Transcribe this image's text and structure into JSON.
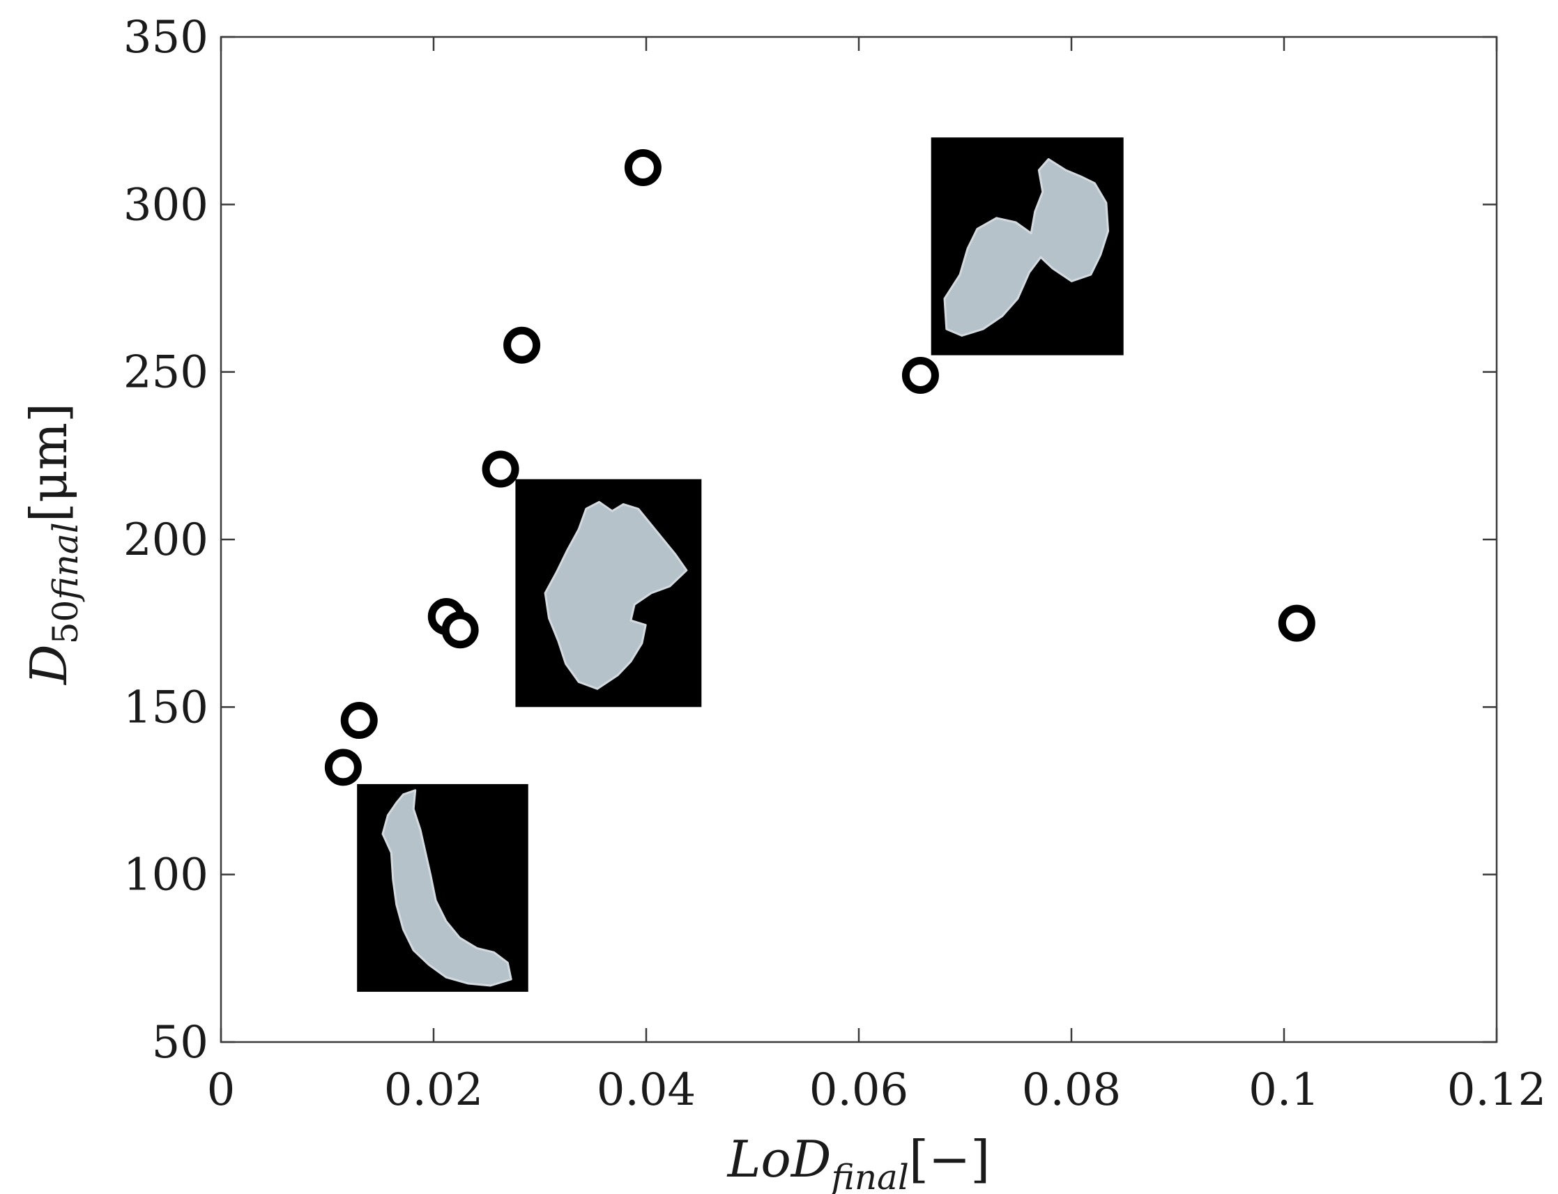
{
  "chart_data": {
    "type": "scatter",
    "xlabel": {
      "main": "LoD",
      "sub": "final",
      "bracket": "[−]"
    },
    "ylabel": {
      "main": "D",
      "sub": "50",
      "sub_italic": "final",
      "bracket": "[μm]"
    },
    "xlim": [
      0,
      0.12
    ],
    "ylim": [
      50,
      350
    ],
    "xticks": [
      0,
      0.02,
      0.04,
      0.06,
      0.08,
      0.1,
      0.12
    ],
    "xtick_labels": [
      "0",
      "0.02",
      "0.04",
      "0.06",
      "0.08",
      "0.1",
      "0.12"
    ],
    "yticks": [
      50,
      100,
      150,
      200,
      250,
      300,
      350
    ],
    "ytick_labels": [
      "50",
      "100",
      "150",
      "200",
      "250",
      "300",
      "350"
    ],
    "grid": false,
    "marker": "open-circle",
    "marker_color": "#000000",
    "points": [
      {
        "x": 0.0115,
        "y": 132
      },
      {
        "x": 0.013,
        "y": 146
      },
      {
        "x": 0.0212,
        "y": 177
      },
      {
        "x": 0.0225,
        "y": 173
      },
      {
        "x": 0.0263,
        "y": 221
      },
      {
        "x": 0.0283,
        "y": 258
      },
      {
        "x": 0.0397,
        "y": 311
      },
      {
        "x": 0.0658,
        "y": 249
      },
      {
        "x": 0.1012,
        "y": 175
      }
    ],
    "insets": [
      {
        "name": "inset-particle-small",
        "x_range": [
          0.0128,
          0.0289
        ],
        "y_range": [
          65,
          127
        ],
        "shape": "curved-strand"
      },
      {
        "name": "inset-particle-medium",
        "x_range": [
          0.0277,
          0.0452
        ],
        "y_range": [
          150,
          218
        ],
        "shape": "clustered-blob"
      },
      {
        "name": "inset-particle-large",
        "x_range": [
          0.0668,
          0.0849
        ],
        "y_range": [
          255,
          320
        ],
        "shape": "elongated-aggregate"
      }
    ],
    "colors": {
      "axis": "#3a3a3a",
      "inset_background": "#000000",
      "particle_fill": "#c6d3dc"
    }
  }
}
